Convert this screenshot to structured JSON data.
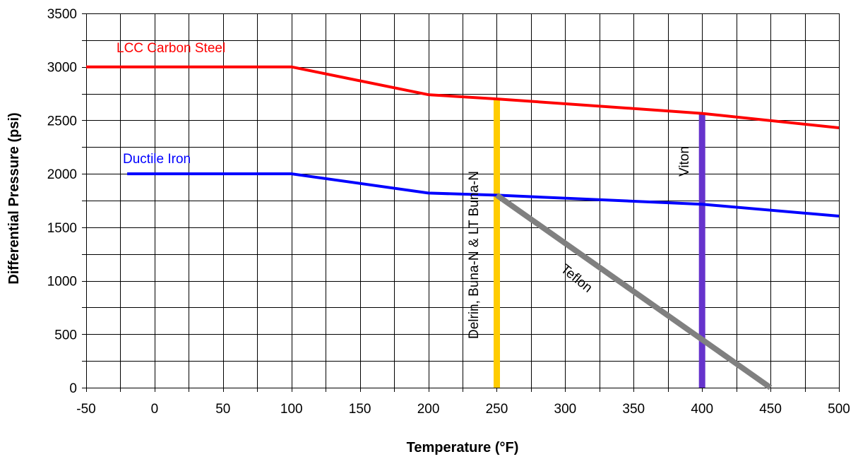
{
  "chart_data": {
    "type": "line",
    "xlabel": "Temperature (°F)",
    "ylabel": "Differential Pressure (psi)",
    "xlim": [
      -50,
      500
    ],
    "ylim": [
      0,
      3500
    ],
    "x_ticks": [
      -50,
      0,
      50,
      100,
      150,
      200,
      250,
      300,
      350,
      400,
      450,
      500
    ],
    "y_ticks": [
      0,
      500,
      1000,
      1500,
      2000,
      2500,
      3000,
      3500
    ],
    "x_ticks_labels": [
      "-50",
      "0",
      "50",
      "100",
      "150",
      "200",
      "250",
      "300",
      "350",
      "400",
      "450",
      "500"
    ],
    "y_ticks_labels": [
      "0",
      "500",
      "1000",
      "1500",
      "2000",
      "2500",
      "3000",
      "3500"
    ],
    "x_grid_step": 25,
    "y_grid_step": 250,
    "grid": true,
    "legend": "none",
    "series": [
      {
        "name": "LCC Carbon Steel",
        "color": "#ff0000",
        "x": [
          -50,
          100,
          200,
          250,
          400,
          500
        ],
        "y": [
          3000,
          3000,
          2740,
          2700,
          2565,
          2430
        ]
      },
      {
        "name": "Ductile Iron",
        "color": "#0000ff",
        "x": [
          -20,
          100,
          200,
          250,
          400,
          500
        ],
        "y": [
          2000,
          2000,
          1820,
          1800,
          1715,
          1605
        ]
      },
      {
        "name": "Teflon",
        "color": "#808080",
        "x": [
          250,
          450
        ],
        "y": [
          1800,
          0
        ]
      },
      {
        "name": "Delrin,   Buna-N & LT Buna-N",
        "color": "#ffcc00",
        "x": [
          250,
          250
        ],
        "y": [
          0,
          2700
        ]
      },
      {
        "name": "Viton",
        "color": "#6633cc",
        "x": [
          400,
          400
        ],
        "y": [
          0,
          2565
        ]
      }
    ]
  }
}
